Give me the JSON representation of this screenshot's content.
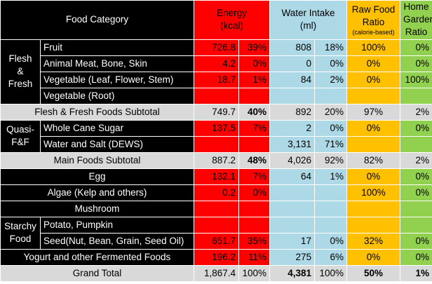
{
  "header": {
    "food_category": "Food Category",
    "energy_line1": "Energy",
    "energy_line2": "(kcal)",
    "water_line1": "Water Intake",
    "water_line2": "(ml)",
    "raw_line1": "Raw Food",
    "raw_line2": "Ratio",
    "raw_line3": "(calorie-based)",
    "home_line1": "Home",
    "home_line2": "Garden",
    "home_line3": "Ratio"
  },
  "groups": {
    "flesh_line1": "Flesh",
    "flesh_line2": "&",
    "flesh_line3": "Fresh",
    "quasi_line1": "Quasi-",
    "quasi_line2": "F&F",
    "starchy_line1": "Starchy",
    "starchy_line2": "Food"
  },
  "rows": {
    "fruit": {
      "label": "Fruit",
      "energy": "726.8",
      "energy_pct": "39%",
      "water": "808",
      "water_pct": "18%",
      "raw": "100%",
      "home": "0%"
    },
    "animal": {
      "label": "Animal Meat, Bone, Skin",
      "energy": "4.2",
      "energy_pct": "0%",
      "water": "0",
      "water_pct": "0%",
      "raw": "0%",
      "home": "0%"
    },
    "veg_leaf": {
      "label": "Vegetable (Leaf, Flower, Stem)",
      "energy": "18.7",
      "energy_pct": "1%",
      "water": "84",
      "water_pct": "2%",
      "raw": "0%",
      "home": "100%"
    },
    "veg_root": {
      "label": "Vegetable (Root)"
    },
    "flesh_subtotal": {
      "label": "Flesh & Fresh Foods Subtotal",
      "energy": "749.7",
      "energy_pct": "40%",
      "water": "892",
      "water_pct": "20%",
      "raw": "97%",
      "home": "2%"
    },
    "sugar": {
      "label": "Whole Cane Sugar",
      "energy": "137.5",
      "energy_pct": "7%",
      "water": "2",
      "water_pct": "0%",
      "raw": "0%",
      "home": "0%"
    },
    "water_salt": {
      "label": "Water and Salt (DEWS)",
      "water": "3,131",
      "water_pct": "71%"
    },
    "main_subtotal": {
      "label": "Main Foods Subtotal",
      "energy": "887.2",
      "energy_pct": "48%",
      "water": "4,026",
      "water_pct": "92%",
      "raw": "82%",
      "home": "2%"
    },
    "egg": {
      "label": "Egg",
      "energy": "132.1",
      "energy_pct": "7%",
      "water": "64",
      "water_pct": "1%",
      "raw": "0%",
      "home": "0%"
    },
    "algae": {
      "label": "Algae (Kelp and others)",
      "energy": "0.2",
      "energy_pct": "0%",
      "raw": "100%",
      "home": "0%"
    },
    "mushroom": {
      "label": "Mushroom"
    },
    "potato": {
      "label": "Potato, Pumpkin"
    },
    "seed": {
      "label": "Seed(Nut, Bean, Grain, Seed Oil)",
      "energy": "651.7",
      "energy_pct": "35%",
      "water": "17",
      "water_pct": "0%",
      "raw": "32%",
      "home": "0%"
    },
    "yogurt": {
      "label": "Yogurt and other Fermented Foods",
      "energy": "196.2",
      "energy_pct": "11%",
      "water": "275",
      "water_pct": "6%",
      "raw": "0%",
      "home": "0%"
    },
    "grand_total": {
      "label": "Grand Total",
      "energy": "1,867.4",
      "energy_pct": "100%",
      "water": "4,381",
      "water_pct": "100%",
      "raw": "50%",
      "home": "1%"
    }
  },
  "colors": {
    "energy": "#ff0000",
    "water": "#add8e6",
    "raw": "#ffc000",
    "home": "#92d050",
    "label": "#000000",
    "subtotal": "#d9d9d9"
  }
}
